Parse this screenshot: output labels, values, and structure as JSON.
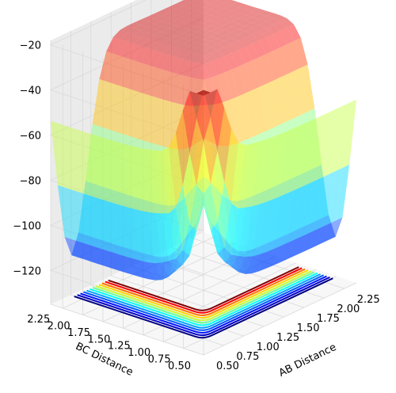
{
  "chart_data": {
    "type": "surface3d",
    "title": "",
    "xlabel": "AB Distance",
    "ylabel": "BC Distance",
    "zlabel": "",
    "xlim": [
      0.5,
      2.4
    ],
    "ylim": [
      0.5,
      2.4
    ],
    "zlim": [
      -135,
      -18
    ],
    "xticks": [
      "0.50",
      "0.75",
      "1.00",
      "1.25",
      "1.50",
      "1.75",
      "2.00",
      "2.25"
    ],
    "yticks": [
      "0.50",
      "0.75",
      "1.00",
      "1.25",
      "1.50",
      "1.75",
      "2.00",
      "2.25"
    ],
    "zticks": [
      "−120",
      "−100",
      "−80",
      "−60",
      "−40",
      "−20"
    ],
    "zticks_values": [
      -120,
      -100,
      -80,
      -60,
      -40,
      -20
    ],
    "surface": {
      "colormap": "jet",
      "alpha": 0.45,
      "wall_value": -28,
      "valley_minimum": -125,
      "saddle_value": -104,
      "saddle_position": [
        0.95,
        0.95
      ]
    },
    "contour_floor": {
      "colormap": "jet",
      "levels": [
        -124,
        -118,
        -112,
        -106,
        -100,
        -92,
        -84,
        -76,
        -68,
        -60,
        -50,
        -40
      ]
    },
    "grid": true,
    "colors": {
      "grid": "#d9d9d9",
      "pane_left": "#f2f2f2",
      "pane_right": "#ebebeb",
      "pane_floor": "#f7f7f7"
    }
  }
}
